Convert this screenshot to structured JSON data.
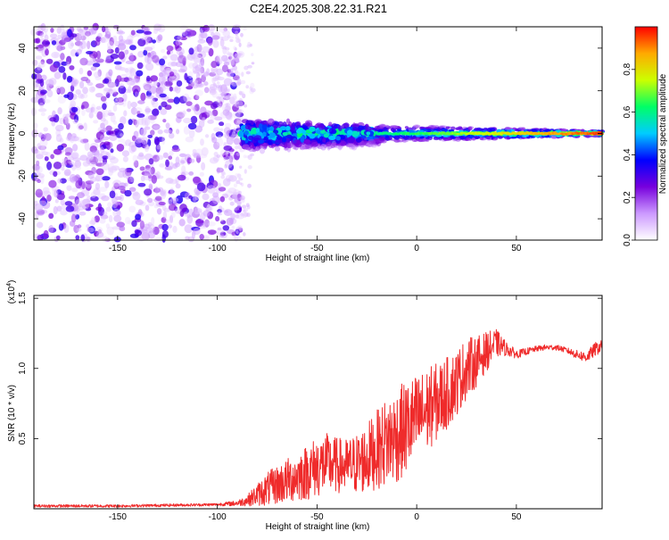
{
  "title": "C2E4.2025.308.22.31.R21",
  "colors": {
    "series_line": "#ef2b2b",
    "axis": "#000000",
    "background": "#ffffff"
  },
  "chart_data": [
    {
      "type": "heatmap",
      "name": "spectrogram",
      "xlabel": "Height of straight line (km)",
      "ylabel": "Frequency (Hz)",
      "xlim": [
        -192,
        93
      ],
      "ylim": [
        -50,
        50
      ],
      "xticks": [
        -150,
        -100,
        -50,
        0,
        50
      ],
      "yticks": [
        -40,
        -20,
        0,
        20,
        40
      ],
      "xtick_labels": [
        "-150",
        "-100",
        "-50",
        "0",
        "50"
      ],
      "ytick_labels": [
        "-40",
        "-20",
        "0",
        "20",
        "40"
      ],
      "colorbar": {
        "label": "Normalized spectral amplitude",
        "ticks": [
          0.0,
          0.2,
          0.4,
          0.6,
          0.8
        ],
        "tick_labels": [
          "0.0",
          "0.2",
          "0.4",
          "0.6",
          "0.8"
        ],
        "range": [
          0,
          1
        ],
        "colormap": [
          "#ffffff",
          "#cc99ff",
          "#7700dd",
          "#0000ff",
          "#00ccff",
          "#00ff66",
          "#ccff00",
          "#ffaa00",
          "#ff0000"
        ]
      },
      "description_bands": [
        {
          "x_range": [
            -192,
            -88
          ],
          "content": "broadband noise, amplitude 0.05-0.35"
        },
        {
          "x_range": [
            -88,
            -20
          ],
          "content": "signal near 0 Hz with spread about +/-8 Hz, amplitude 0.2-0.55"
        },
        {
          "x_range": [
            -20,
            93
          ],
          "content": "narrow signal at 0 Hz, amplitude rising to 0.9"
        }
      ]
    },
    {
      "type": "line",
      "name": "snr",
      "xlabel": "Height of straight line (km)",
      "ylabel": "SNR (10 * v/v)",
      "exponent_label": "(x10",
      "exponent_value": "4",
      "xlim": [
        -192,
        93
      ],
      "ylim": [
        0,
        1.52
      ],
      "xticks": [
        -150,
        -100,
        -50,
        0,
        50
      ],
      "xtick_labels": [
        "-150",
        "-100",
        "-50",
        "0",
        "50"
      ],
      "yticks": [
        0.5,
        1.0,
        1.5
      ],
      "ytick_labels": [
        "0.5",
        "1.0",
        "1.5"
      ],
      "series": [
        {
          "name": "SNR",
          "x": [
            -192,
            -150,
            -100,
            -90,
            -85,
            -80,
            -75,
            -70,
            -65,
            -60,
            -55,
            -50,
            -45,
            -40,
            -35,
            -30,
            -25,
            -20,
            -15,
            -10,
            -5,
            0,
            5,
            10,
            15,
            20,
            25,
            30,
            35,
            40,
            45,
            50,
            55,
            60,
            65,
            70,
            75,
            80,
            85,
            90,
            93
          ],
          "y": [
            0.02,
            0.02,
            0.03,
            0.04,
            0.06,
            0.1,
            0.14,
            0.17,
            0.2,
            0.23,
            0.26,
            0.3,
            0.32,
            0.31,
            0.3,
            0.32,
            0.36,
            0.42,
            0.48,
            0.52,
            0.58,
            0.64,
            0.7,
            0.76,
            0.82,
            0.9,
            1.0,
            1.05,
            1.12,
            1.18,
            1.14,
            1.1,
            1.12,
            1.14,
            1.15,
            1.15,
            1.13,
            1.1,
            1.08,
            1.14,
            1.16
          ],
          "noise_amp": [
            0.01,
            0.01,
            0.01,
            0.02,
            0.04,
            0.08,
            0.12,
            0.14,
            0.16,
            0.18,
            0.2,
            0.22,
            0.22,
            0.2,
            0.2,
            0.22,
            0.25,
            0.28,
            0.32,
            0.34,
            0.34,
            0.32,
            0.3,
            0.28,
            0.26,
            0.24,
            0.22,
            0.18,
            0.14,
            0.1,
            0.05,
            0.03,
            0.025,
            0.02,
            0.02,
            0.02,
            0.02,
            0.03,
            0.04,
            0.05,
            0.04
          ]
        }
      ]
    }
  ]
}
